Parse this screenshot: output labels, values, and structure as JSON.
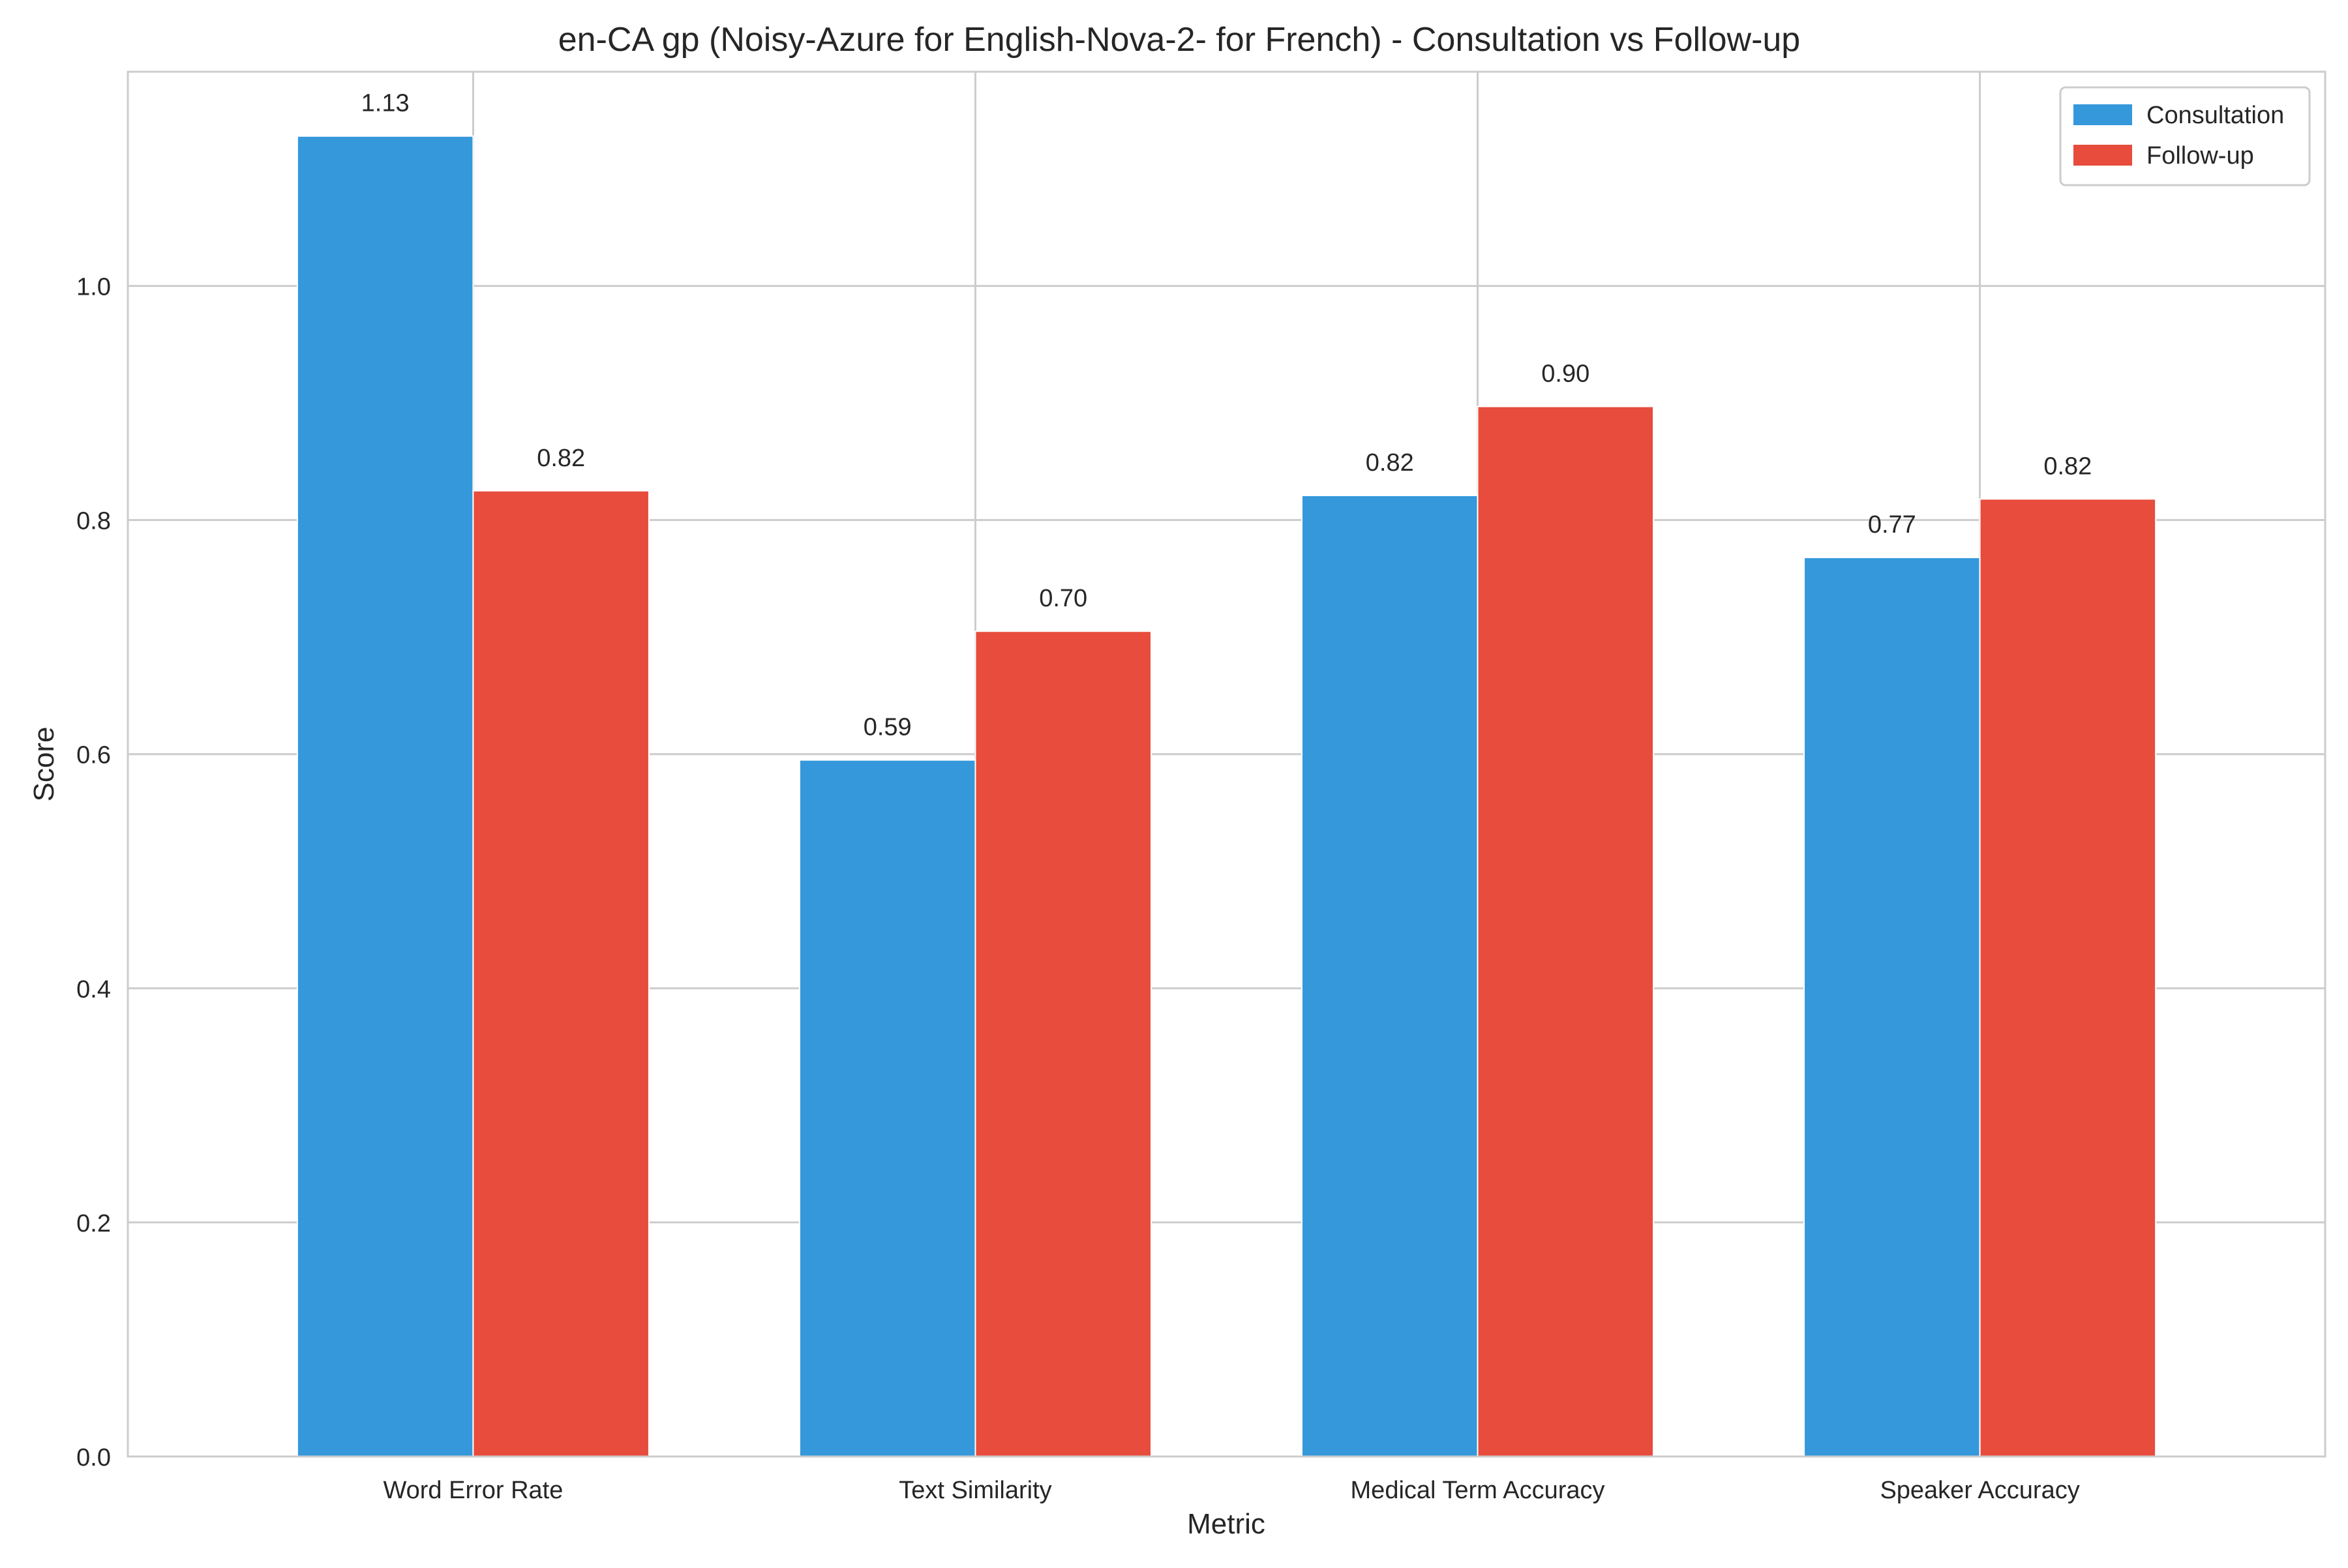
{
  "chart_data": {
    "type": "bar",
    "title": "en-CA gp (Noisy-Azure for English-Nova-2- for French) - Consultation vs Follow-up",
    "xlabel": "Metric",
    "ylabel": "Score",
    "categories": [
      "Word Error Rate",
      "Text Similarity",
      "Medical Term Accuracy",
      "Speaker Accuracy"
    ],
    "series": [
      {
        "name": "Consultation",
        "color": "#3498db",
        "values": [
          1.128,
          0.595,
          0.821,
          0.768
        ],
        "labels": [
          "1.13",
          "0.59",
          "0.82",
          "0.77"
        ]
      },
      {
        "name": "Follow-up",
        "color": "#e74c3c",
        "values": [
          0.825,
          0.705,
          0.897,
          0.818
        ],
        "labels": [
          "0.82",
          "0.70",
          "0.90",
          "0.82"
        ]
      }
    ],
    "ylim": [
      0,
      1.183
    ],
    "yticks": [
      0.0,
      0.2,
      0.4,
      0.6,
      0.8,
      1.0
    ],
    "ytick_labels": [
      "0.0",
      "0.2",
      "0.4",
      "0.6",
      "0.8",
      "1.0"
    ],
    "grid": true,
    "legend_position": "top-right"
  }
}
